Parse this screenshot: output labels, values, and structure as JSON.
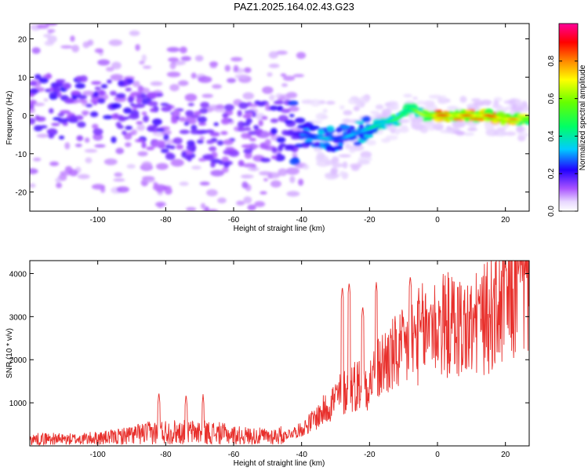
{
  "figure": {
    "title": "PAZ1.2025.164.02.43.G23"
  },
  "chart_data": [
    {
      "type": "heatmap",
      "xlabel": "Height of straight line (km)",
      "ylabel": "Frequency (Hz)",
      "xlim": [
        -120,
        27
      ],
      "ylim": [
        -25,
        24
      ],
      "xticks": [
        -100,
        -80,
        -60,
        -40,
        -20,
        0,
        20
      ],
      "yticks": [
        -20,
        -10,
        0,
        10,
        20
      ],
      "colorbar": {
        "label": "Normalized spectral amplitude",
        "range": [
          0,
          1
        ],
        "ticks": [
          0.0,
          0.2,
          0.4,
          0.6,
          0.8
        ],
        "colors": [
          "#ffffff",
          "#cc88ff",
          "#6600ff",
          "#0000ff",
          "#00ffff",
          "#00ff00",
          "#ffff00",
          "#ff8000",
          "#ff0000",
          "#ff00aa"
        ]
      },
      "ridge": {
        "description_points_x": [
          -120,
          -110,
          -100,
          -90,
          -80,
          -70,
          -60,
          -50,
          -40,
          -33,
          -28,
          -22,
          -16,
          -12,
          -8,
          -4,
          0,
          5,
          10,
          15,
          20,
          27
        ],
        "frequency_hz": [
          3,
          2,
          2,
          1,
          -3,
          -5,
          -5,
          -4,
          -5,
          -6,
          -6,
          -4,
          -2,
          -1,
          2,
          0,
          0,
          0,
          0,
          0,
          -1,
          -1
        ],
        "amplitude": [
          0.18,
          0.22,
          0.2,
          0.2,
          0.18,
          0.18,
          0.17,
          0.18,
          0.28,
          0.35,
          0.3,
          0.38,
          0.45,
          0.5,
          0.55,
          0.65,
          0.85,
          0.8,
          0.8,
          0.85,
          0.8,
          0.7
        ]
      }
    },
    {
      "type": "line",
      "xlabel": "Height of straight line (km)",
      "ylabel": "SNR (10 * v/v)",
      "xlim": [
        -120,
        27
      ],
      "ylim": [
        0,
        4300
      ],
      "xticks": [
        -100,
        -80,
        -60,
        -40,
        -20,
        0,
        20
      ],
      "yticks": [
        1000,
        2000,
        3000,
        4000
      ],
      "series": [
        {
          "color": "#e8302c",
          "x": [
            -120,
            -115,
            -110,
            -105,
            -100,
            -95,
            -90,
            -85,
            -80,
            -75,
            -70,
            -65,
            -60,
            -55,
            -50,
            -45,
            -40,
            -35,
            -30,
            -25,
            -20,
            -15,
            -10,
            -5,
            0,
            5,
            10,
            15,
            20,
            25,
            27
          ],
          "baseline": [
            150,
            170,
            150,
            160,
            180,
            200,
            260,
            300,
            330,
            320,
            320,
            300,
            250,
            230,
            220,
            250,
            380,
            700,
            1100,
            1400,
            1500,
            2000,
            2200,
            2600,
            2800,
            2800,
            2700,
            3000,
            3300,
            3700,
            3800
          ],
          "spikes": [
            [
              -82,
              1250
            ],
            [
              -74,
              1200
            ],
            [
              -69,
              1200
            ],
            [
              -28,
              3700
            ],
            [
              -26,
              3800
            ],
            [
              -22,
              3250
            ],
            [
              -18,
              3800
            ],
            [
              -8,
              3950
            ],
            [
              -2,
              3250
            ],
            [
              12,
              3500
            ],
            [
              20,
              4200
            ],
            [
              24,
              4200
            ],
            [
              26,
              4150
            ]
          ]
        }
      ]
    }
  ]
}
